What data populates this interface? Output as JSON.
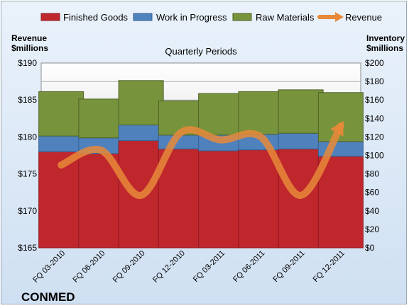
{
  "chart_data": {
    "type": "bar",
    "title": "Quarterly Periods",
    "company": "CONMED",
    "left_axis_label": [
      "Revenue",
      "$millions"
    ],
    "right_axis_label": [
      "Inventory",
      "$millions"
    ],
    "categories": [
      "FQ 03-2010",
      "FQ 06-2010",
      "FQ 09-2010",
      "FQ 12-2010",
      "FQ 03-2011",
      "FQ 06-2011",
      "FQ 09-2011",
      "FQ 12-2011"
    ],
    "left_axis": {
      "min": 165,
      "max": 190,
      "step": 5,
      "ticks": [
        "$165",
        "$170",
        "$175",
        "$180",
        "$185",
        "$190"
      ]
    },
    "right_axis": {
      "min": 0,
      "max": 200,
      "step": 20,
      "ticks": [
        "$0",
        "$20",
        "$40",
        "$60",
        "$80",
        "$100",
        "$120",
        "$140",
        "$160",
        "$180",
        "$200"
      ]
    },
    "series": [
      {
        "name": "Finished Goods",
        "axis": "right",
        "kind": "bar",
        "color": "#c0272d",
        "values": [
          104,
          102,
          116,
          107,
          105,
          106,
          107,
          99
        ]
      },
      {
        "name": "Work in Progress",
        "axis": "right",
        "kind": "bar",
        "color": "#4f81bd",
        "values": [
          17,
          17,
          17,
          15,
          17,
          17,
          17,
          16
        ]
      },
      {
        "name": "Raw Materials",
        "axis": "right",
        "kind": "bar",
        "color": "#77933c",
        "values": [
          48,
          42,
          48,
          37,
          45,
          46,
          47,
          53
        ]
      },
      {
        "name": "Revenue",
        "axis": "left",
        "kind": "line",
        "color": "#e8893a",
        "values": [
          176.2,
          178.2,
          172.1,
          180.6,
          179.6,
          180.0,
          172.1,
          181.5
        ]
      }
    ],
    "grid": true,
    "legend_position": "top"
  }
}
